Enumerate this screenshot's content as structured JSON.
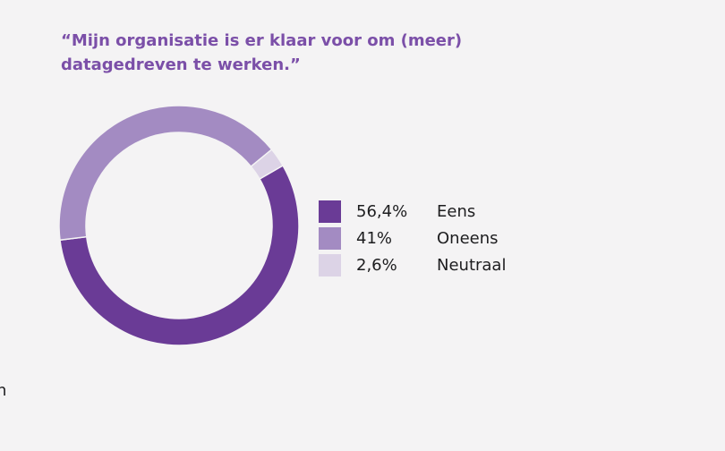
{
  "page": {
    "edge_fragment": "n"
  },
  "chart_data": {
    "type": "pie",
    "variant": "donut",
    "title_lines": [
      "“Mijn organisatie is er klaar voor om (meer)",
      "datagedreven te werken.”"
    ],
    "slices": [
      {
        "label": "Eens",
        "value": 56.4,
        "value_label": "56,4%",
        "color": "#6a3b96"
      },
      {
        "label": "Oneens",
        "value": 41,
        "value_label": "41%",
        "color": "#a38bc2"
      },
      {
        "label": "Neutraal",
        "value": 2.6,
        "value_label": "2,6%",
        "color": "#dcd3e6"
      }
    ],
    "legend_placement": "right"
  }
}
